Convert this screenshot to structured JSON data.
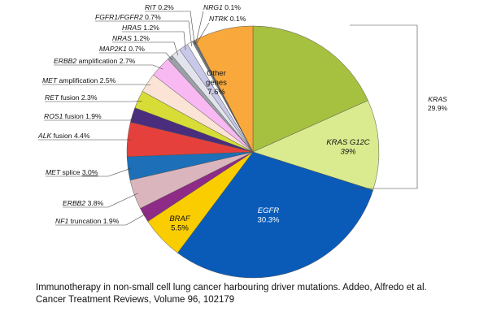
{
  "chart_data": {
    "type": "pie",
    "start_angle_deg": 0,
    "direction": "clockwise",
    "slices": [
      {
        "key": "kras_other",
        "name": "",
        "value": 18.3,
        "color": "#a6c140",
        "label_lines": []
      },
      {
        "key": "kras_g12c",
        "name": "KRAS G12C",
        "value": 11.6,
        "color": "#d9eb8e",
        "label_lines": [
          "KRAS G12C",
          "39%"
        ],
        "label_style": "inside",
        "italic": [
          true,
          true
        ]
      },
      {
        "key": "egfr",
        "name": "EGFR",
        "value": 30.3,
        "color": "#0a5bb8",
        "label_lines": [
          "EGFR",
          "30.3%"
        ],
        "label_style": "inside-white",
        "italic": [
          true,
          false
        ]
      },
      {
        "key": "braf",
        "name": "BRAF",
        "value": 5.5,
        "color": "#f9cd00",
        "label_lines": [
          "BRAF",
          "5.5%"
        ],
        "label_style": "inside",
        "italic": [
          true,
          false
        ]
      },
      {
        "key": "nf1",
        "name": "NF1",
        "value": 1.9,
        "color": "#8e2b87",
        "label_style": "outside",
        "label_parts": [
          {
            "t": "NF1",
            "i": true
          },
          {
            "t": " truncation 1.9%",
            "i": false
          }
        ]
      },
      {
        "key": "erbb2",
        "name": "ERBB2",
        "value": 3.8,
        "color": "#dbb5bd",
        "label_style": "outside",
        "label_parts": [
          {
            "t": "ERBB2",
            "i": true
          },
          {
            "t": "  3.8%",
            "i": false
          }
        ]
      },
      {
        "key": "met_splice",
        "name": "MET splice",
        "value": 3.0,
        "color": "#1d6fb8",
        "label_style": "outside",
        "label_parts": [
          {
            "t": "MET",
            "i": true
          },
          {
            "t": " splice ",
            "i": false
          },
          {
            "t": "3.0%",
            "i": false,
            "u": true
          }
        ]
      },
      {
        "key": "alk",
        "name": "ALK fusion",
        "value": 4.4,
        "color": "#e6403c",
        "label_style": "outside",
        "label_parts": [
          {
            "t": "ALK",
            "i": true
          },
          {
            "t": " fusion 4.4%",
            "i": false
          }
        ]
      },
      {
        "key": "ros1",
        "name": "ROS1 fusion",
        "value": 1.9,
        "color": "#4b2d7e",
        "label_style": "outside",
        "label_parts": [
          {
            "t": "ROS1",
            "i": true
          },
          {
            "t": " fusion 1.9%",
            "i": false
          }
        ]
      },
      {
        "key": "ret",
        "name": "RET fusion",
        "value": 2.3,
        "color": "#d7dd36",
        "label_style": "outside",
        "label_parts": [
          {
            "t": "RET",
            "i": true
          },
          {
            "t": " fusion 2.3%",
            "i": false
          }
        ]
      },
      {
        "key": "met_amp",
        "name": "MET amplification",
        "value": 2.5,
        "color": "#fbe4d6",
        "label_style": "outside",
        "label_parts": [
          {
            "t": "MET",
            "i": true
          },
          {
            "t": " amplification 2.5%",
            "i": false
          }
        ]
      },
      {
        "key": "erbb2_amp",
        "name": "ERBB2 amplification",
        "value": 2.7,
        "color": "#f8b8f2",
        "label_style": "outside",
        "label_parts": [
          {
            "t": "ERBB2",
            "i": true
          },
          {
            "t": " amplification 2.7%",
            "i": false
          }
        ]
      },
      {
        "key": "map2k1",
        "name": "MAP2K1",
        "value": 0.7,
        "color": "#9aa0a6",
        "label_style": "outside",
        "label_parts": [
          {
            "t": "MAP2K1",
            "i": true
          },
          {
            "t": " 0.7%",
            "i": false
          }
        ]
      },
      {
        "key": "nras",
        "name": "NRAS",
        "value": 1.2,
        "color": "#e3e3ee",
        "label_style": "outside",
        "label_parts": [
          {
            "t": "NRAS",
            "i": true
          },
          {
            "t": " 1.2%",
            "i": false
          }
        ]
      },
      {
        "key": "hras",
        "name": "HRAS",
        "value": 1.2,
        "color": "#c8c8e8",
        "label_style": "outside",
        "label_parts": [
          {
            "t": "HRAS",
            "i": true
          },
          {
            "t": " 1.2%",
            "i": false
          }
        ]
      },
      {
        "key": "fgfr",
        "name": "FGFR1/FGFR2",
        "value": 0.7,
        "color": "#ffffff",
        "label_style": "outside",
        "label_parts": [
          {
            "t": "FGFR1/FGFR2",
            "i": true
          },
          {
            "t": " 0.7%",
            "i": false
          }
        ]
      },
      {
        "key": "rit",
        "name": "RIT",
        "value": 0.2,
        "color": "#8a8a8a",
        "label_style": "outside",
        "label_parts": [
          {
            "t": "RIT",
            "i": true
          },
          {
            "t": " 0.2%",
            "i": false
          }
        ]
      },
      {
        "key": "nrg1",
        "name": "NRG1",
        "value": 0.1,
        "color": "#6a6a6a",
        "label_style": "outside",
        "label_parts": [
          {
            "t": "NRG1",
            "i": true
          },
          {
            "t": " 0.1%",
            "i": false
          }
        ]
      },
      {
        "key": "ntrk",
        "name": "NTRK",
        "value": 0.1,
        "color": "#b0b0b0",
        "label_style": "outside",
        "label_parts": [
          {
            "t": "NTRK",
            "i": true
          },
          {
            "t": " 0.1%",
            "i": false
          }
        ]
      },
      {
        "key": "other",
        "name": "Other genes",
        "value": 7.6,
        "color": "#f9a83c",
        "label_lines": [
          "Other",
          "genes",
          "7.6%"
        ],
        "label_style": "inside",
        "italic": [
          false,
          false,
          false
        ]
      }
    ],
    "bracket": {
      "label_lines": [
        "KRAS",
        "29.9%"
      ],
      "italic": [
        true,
        false
      ]
    }
  },
  "caption": {
    "line1": "Immunotherapy in non-small cell lung cancer harbouring driver mutations. Addeo, Alfredo et al.",
    "line2": "Cancer Treatment Reviews, Volume 96, 102179"
  }
}
